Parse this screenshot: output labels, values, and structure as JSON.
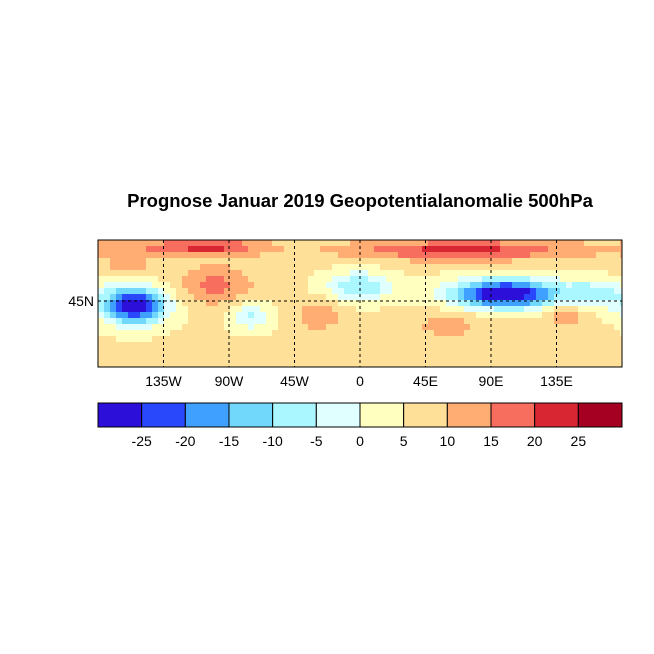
{
  "title": "Prognose Januar 2019 Geopotentialanomalie 500hPa",
  "map": {
    "lat_labels": [
      "45N"
    ],
    "lon_labels": [
      "135W",
      "90W",
      "45W",
      "0",
      "45E",
      "90E",
      "135E"
    ],
    "lon_values": [
      -135,
      -90,
      -45,
      0,
      45,
      90,
      135
    ],
    "lat_values": [
      45
    ],
    "gridlines": "dashed"
  },
  "colorbar": {
    "levels": [
      -25,
      -20,
      -15,
      -10,
      -5,
      0,
      5,
      10,
      15,
      20,
      25
    ],
    "labels": [
      "-25",
      "-20",
      "-15",
      "-10",
      "-5",
      "0",
      "5",
      "10",
      "15",
      "20",
      "25"
    ],
    "colors": [
      "#2c0fd8",
      "#2a48fb",
      "#3fa0ff",
      "#72d8fb",
      "#aaf7ff",
      "#e0ffff",
      "#ffffbf",
      "#ffe099",
      "#ffad72",
      "#f76d5e",
      "#d82632",
      "#a50021"
    ]
  }
}
